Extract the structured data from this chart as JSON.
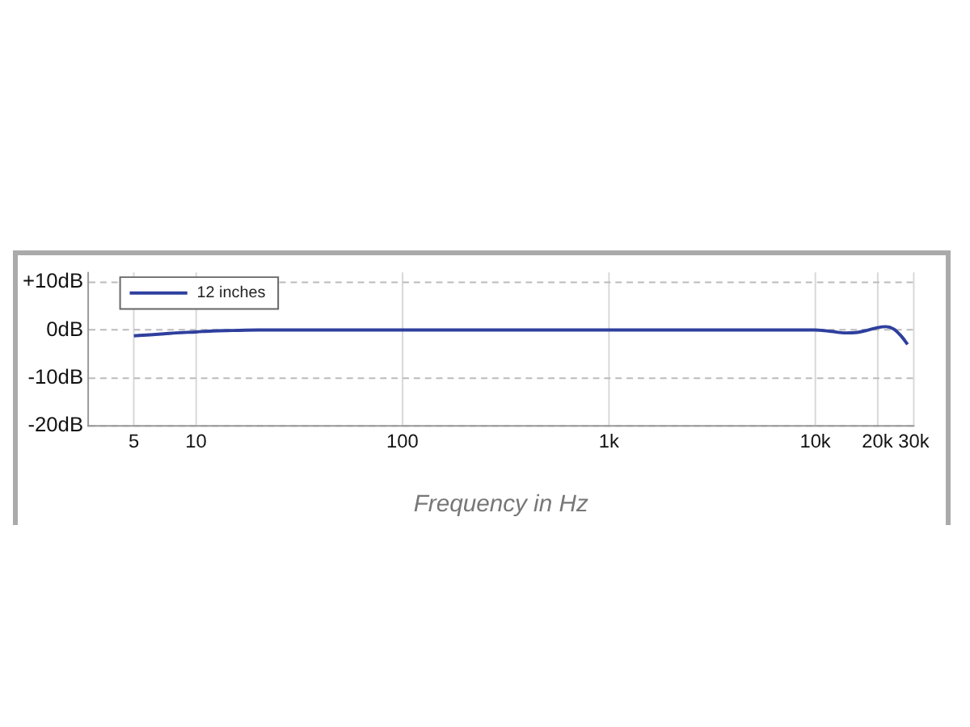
{
  "chart_data": {
    "type": "line",
    "xlabel": "Frequency in Hz",
    "log": "x",
    "xlim": [
      3,
      30000
    ],
    "xticks": [
      5,
      10,
      100,
      {
        "value": 1000,
        "label": "1k"
      },
      {
        "value": 10000,
        "label": "10k"
      },
      {
        "value": 20000,
        "label": "20k"
      },
      {
        "value": 30000,
        "label": "30k"
      }
    ],
    "ylim": [
      -20,
      12
    ],
    "yticks": [
      {
        "value": -20,
        "label": "-20dB"
      },
      {
        "value": -10,
        "label": "-10dB"
      },
      {
        "value": 0,
        "label": "0dB"
      },
      {
        "value": 10,
        "label": "+10dB"
      }
    ],
    "grid": true,
    "legend": "top left",
    "marker": "none",
    "line_style": "solid",
    "series": [
      {
        "name": "12 inches",
        "color": "#2e3f9e",
        "x": [
          5,
          6,
          7,
          8,
          10,
          12,
          15,
          20,
          50,
          100,
          1000,
          5000,
          10000,
          12000,
          14000,
          16000,
          18000,
          20000,
          22000,
          24000,
          26000,
          28000
        ],
        "values": [
          -1.2,
          -1,
          -0.8,
          -0.6,
          -0.4,
          -0.2,
          -0.1,
          0,
          0,
          0,
          0,
          0,
          0,
          -0.3,
          -0.6,
          -0.5,
          0,
          0.5,
          0.7,
          0.2,
          -1.2,
          -3
        ]
      }
    ]
  }
}
